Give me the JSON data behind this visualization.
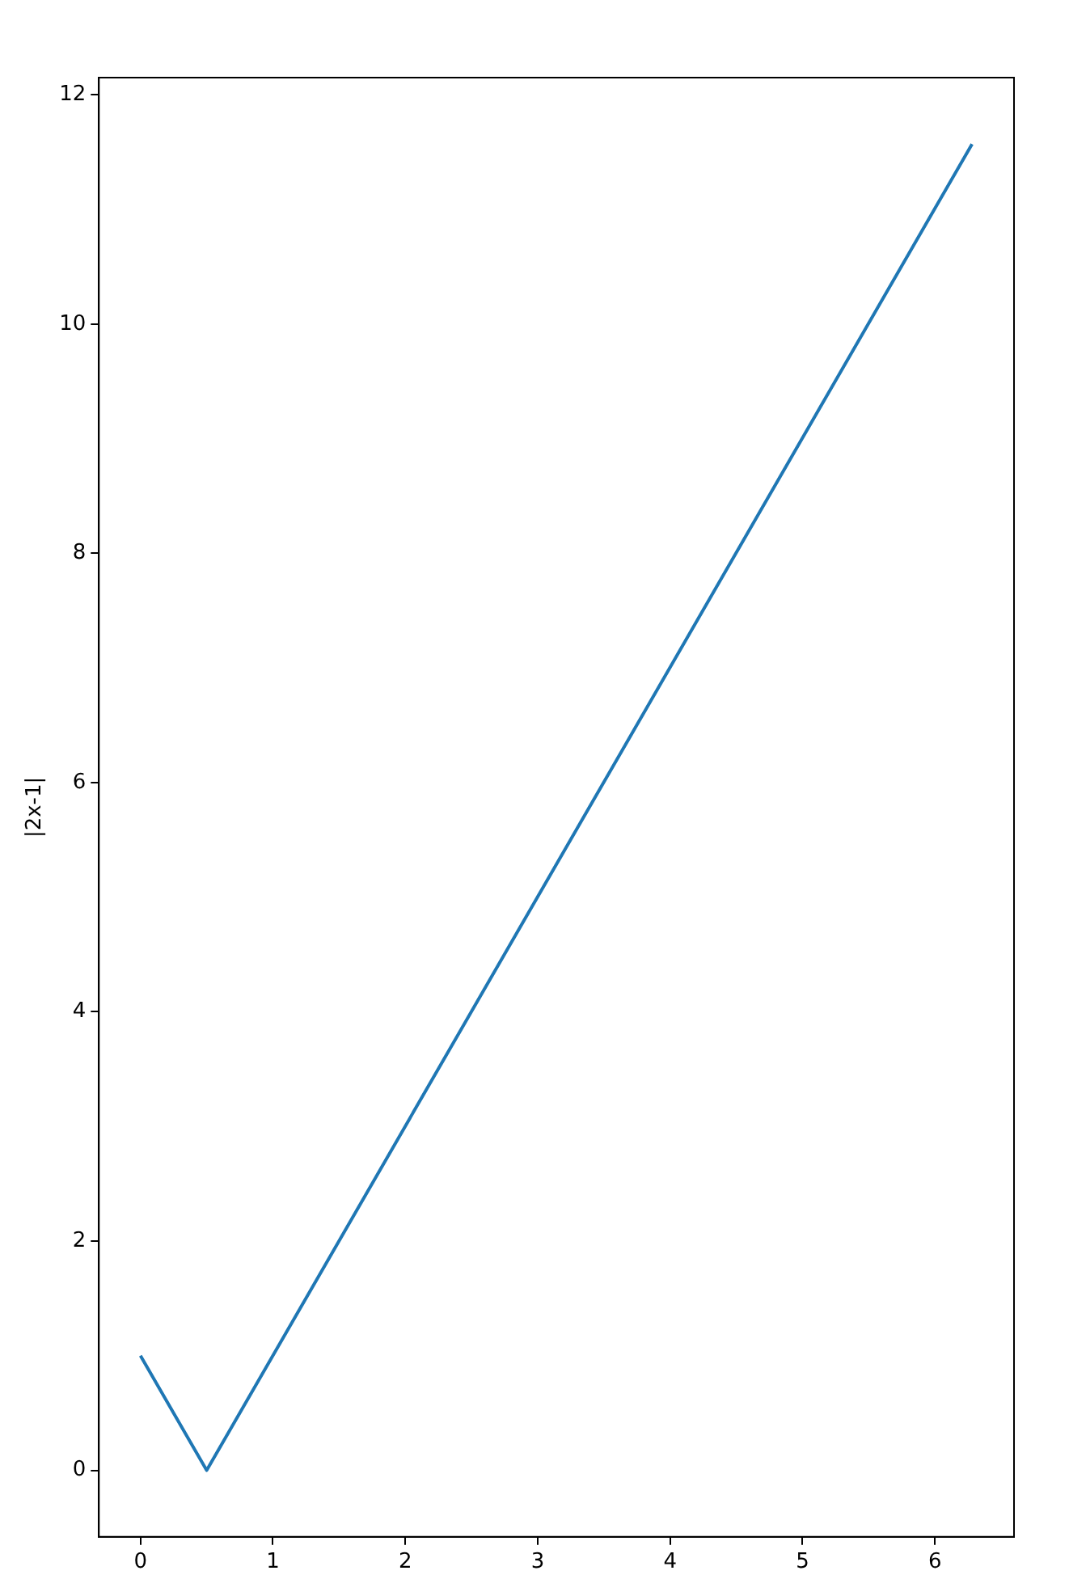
{
  "chart_data": {
    "type": "line",
    "ylabel": "|2x-1|",
    "x": [
      0,
      0.5,
      6.28
    ],
    "series": [
      {
        "color": "#1f77b4",
        "values": [
          1,
          0,
          11.57
        ]
      }
    ],
    "xlim": [
      -0.314,
      6.597
    ],
    "ylim": [
      -0.58,
      12.15
    ],
    "xticks": [
      0,
      1,
      2,
      3,
      4,
      5,
      6
    ],
    "yticks": [
      0,
      2,
      4,
      6,
      8,
      10,
      12
    ],
    "grid": false,
    "legend": false,
    "marker": "none",
    "line_style": "solid"
  }
}
